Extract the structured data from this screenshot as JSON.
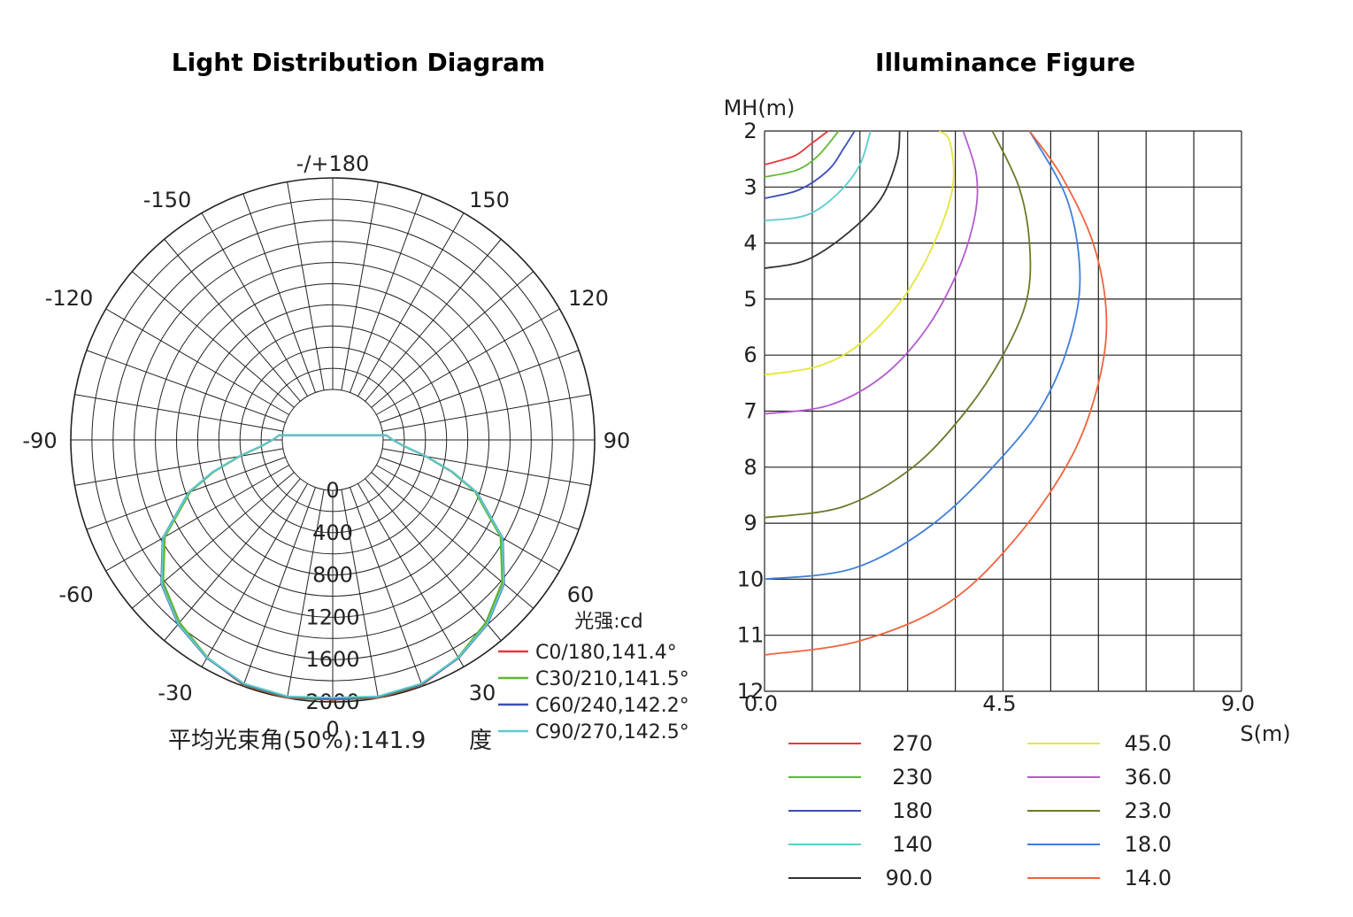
{
  "chart_data": [
    {
      "type": "polar",
      "title": "Light Distribution Diagram",
      "angle_labels": [
        "-/+180",
        "150",
        "120",
        "90",
        "60",
        "30",
        "0",
        "-30",
        "-60",
        "-90",
        "-120",
        "-150"
      ],
      "angle_values": [
        180,
        150,
        120,
        90,
        60,
        30,
        0,
        -30,
        -60,
        -90,
        -120,
        -150
      ],
      "radial_labels": [
        "0",
        "400",
        "800",
        "1200",
        "1600",
        "2000"
      ],
      "radial_values": [
        0,
        400,
        800,
        1200,
        1600,
        2000
      ],
      "unit_label": "光强:cd",
      "beam_angle_text": "平均光束角(50%):141.9",
      "beam_angle_unit": "度",
      "theta": [
        0,
        10,
        20,
        30,
        40,
        50,
        60,
        70,
        75,
        80,
        85,
        90,
        95
      ],
      "series": [
        {
          "name": "C0/180,141.4°",
          "color": "#e8383d",
          "values": [
            1980,
            2000,
            1990,
            1900,
            1780,
            1620,
            1360,
            960,
            690,
            420,
            200,
            90,
            30
          ]
        },
        {
          "name": "C30/210,141.5°",
          "color": "#5db832",
          "values": [
            1975,
            1995,
            1985,
            1895,
            1775,
            1615,
            1355,
            955,
            688,
            418,
            200,
            90,
            30
          ]
        },
        {
          "name": "C60/240,142.2°",
          "color": "#3a4fb8",
          "values": [
            1970,
            1990,
            1980,
            1905,
            1800,
            1640,
            1380,
            975,
            700,
            425,
            205,
            92,
            32
          ]
        },
        {
          "name": "C90/270,142.5°",
          "color": "#5ccccc",
          "values": [
            1960,
            1985,
            1975,
            1900,
            1795,
            1635,
            1375,
            972,
            702,
            428,
            206,
            93,
            32
          ]
        }
      ]
    },
    {
      "type": "line",
      "title": "Illuminance Figure",
      "xlabel": "S(m)",
      "ylabel": "MH(m)",
      "x_ticks": [
        "0.0",
        "4.5",
        "9.0"
      ],
      "x_tick_values": [
        0,
        4.5,
        9
      ],
      "y_ticks": [
        "2",
        "3",
        "4",
        "5",
        "6",
        "7",
        "8",
        "9",
        "10",
        "11",
        "12"
      ],
      "y_tick_values": [
        2,
        3,
        4,
        5,
        6,
        7,
        8,
        9,
        10,
        11,
        12
      ],
      "xlim": [
        0,
        9
      ],
      "ylim": [
        2,
        12
      ],
      "series": [
        {
          "name": "270",
          "color": "#e8383d",
          "points": [
            [
              0,
              2.6
            ],
            [
              0.55,
              2.45
            ],
            [
              0.85,
              2.25
            ],
            [
              1.2,
              2.0
            ]
          ]
        },
        {
          "name": "230",
          "color": "#5db832",
          "points": [
            [
              0,
              2.82
            ],
            [
              0.6,
              2.7
            ],
            [
              1.0,
              2.45
            ],
            [
              1.4,
              2.0
            ]
          ]
        },
        {
          "name": "180",
          "color": "#3a4fb8",
          "points": [
            [
              0,
              3.2
            ],
            [
              0.65,
              3.05
            ],
            [
              1.2,
              2.7
            ],
            [
              1.5,
              2.3
            ],
            [
              1.7,
              2.0
            ]
          ]
        },
        {
          "name": "140",
          "color": "#5ccccc",
          "points": [
            [
              0,
              3.6
            ],
            [
              0.8,
              3.5
            ],
            [
              1.4,
              3.1
            ],
            [
              1.8,
              2.6
            ],
            [
              2.0,
              2.0
            ]
          ]
        },
        {
          "name": "90.0",
          "color": "#333333",
          "points": [
            [
              0,
              4.45
            ],
            [
              0.8,
              4.3
            ],
            [
              1.6,
              3.8
            ],
            [
              2.2,
              3.2
            ],
            [
              2.5,
              2.5
            ],
            [
              2.55,
              2.0
            ]
          ]
        },
        {
          "name": "45.0",
          "color": "#e6e63a",
          "points": [
            [
              0,
              6.35
            ],
            [
              1.0,
              6.2
            ],
            [
              1.8,
              5.8
            ],
            [
              2.6,
              5.0
            ],
            [
              3.2,
              4.0
            ],
            [
              3.55,
              3.0
            ],
            [
              3.5,
              2.2
            ],
            [
              3.3,
              2.0
            ]
          ]
        },
        {
          "name": "36.0",
          "color": "#b45bd0",
          "points": [
            [
              0,
              7.05
            ],
            [
              1.2,
              6.9
            ],
            [
              2.2,
              6.4
            ],
            [
              3.0,
              5.6
            ],
            [
              3.6,
              4.6
            ],
            [
              3.95,
              3.6
            ],
            [
              4.0,
              2.8
            ],
            [
              3.75,
              2.0
            ]
          ]
        },
        {
          "name": "23.0",
          "color": "#6b7a2a",
          "points": [
            [
              0,
              8.9
            ],
            [
              1.5,
              8.7
            ],
            [
              2.8,
              8.0
            ],
            [
              3.8,
              7.0
            ],
            [
              4.5,
              6.0
            ],
            [
              4.95,
              5.0
            ],
            [
              5.0,
              4.0
            ],
            [
              4.8,
              3.0
            ],
            [
              4.3,
              2.0
            ]
          ]
        },
        {
          "name": "18.0",
          "color": "#3f7fd9",
          "points": [
            [
              0,
              10.0
            ],
            [
              1.7,
              9.8
            ],
            [
              3.2,
              9.0
            ],
            [
              4.5,
              7.8
            ],
            [
              5.3,
              6.8
            ],
            [
              5.8,
              5.6
            ],
            [
              5.95,
              4.5
            ],
            [
              5.7,
              3.2
            ],
            [
              5.0,
              2.0
            ]
          ]
        },
        {
          "name": "14.0",
          "color": "#f0643c",
          "points": [
            [
              0,
              11.35
            ],
            [
              1.8,
              11.1
            ],
            [
              3.5,
              10.4
            ],
            [
              4.8,
              9.2
            ],
            [
              5.8,
              7.8
            ],
            [
              6.3,
              6.5
            ],
            [
              6.45,
              5.3
            ],
            [
              6.2,
              4.0
            ],
            [
              5.6,
              2.8
            ],
            [
              5.0,
              2.0
            ]
          ]
        }
      ]
    }
  ]
}
